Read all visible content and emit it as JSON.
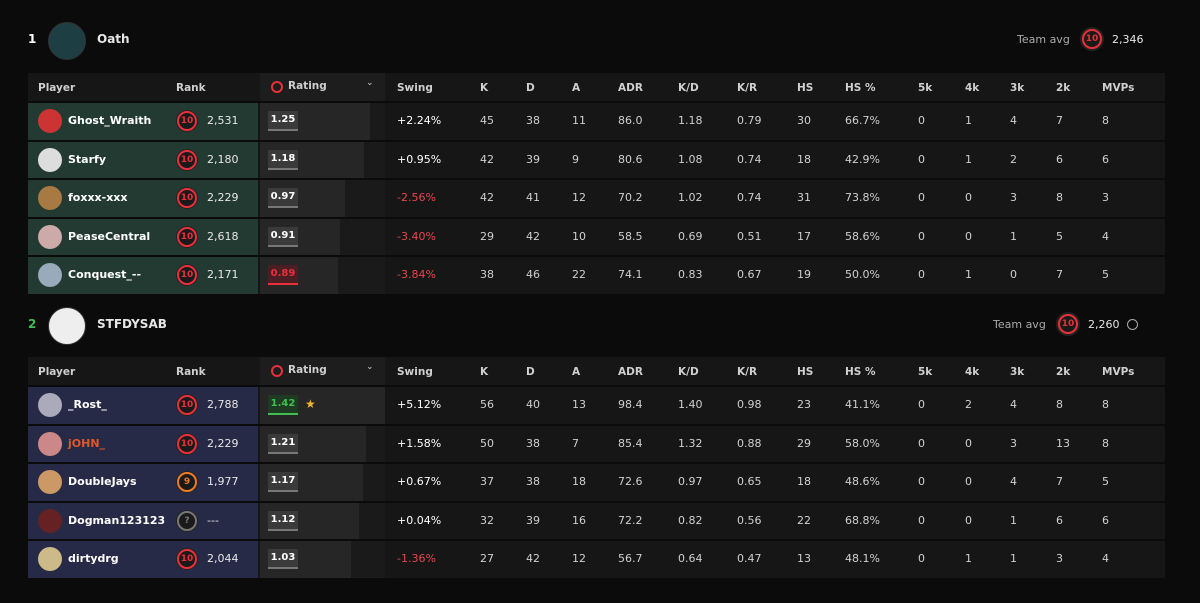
{
  "teams": [
    {
      "place": "1",
      "name": "Oath",
      "avg_label": "Team avg",
      "avg_level": "10",
      "avg_rank": "2,346",
      "place_color": "#ffffff",
      "player_color": "#233a33",
      "info_icon": false,
      "columns": [
        "Player",
        "Rank",
        "Rating",
        "Swing",
        "K",
        "D",
        "A",
        "ADR",
        "K/D",
        "K/R",
        "HS",
        "HS %",
        "5k",
        "4k",
        "3k",
        "2k",
        "MVPs"
      ],
      "rows": [
        {
          "player": "Ghost_Wraith",
          "level": "10",
          "elo": "2,531",
          "rating": "1.25",
          "stats": [
            "+2.24%",
            "45",
            "38",
            "11",
            "86.0",
            "1.18",
            "0.79",
            "30",
            "66.7%",
            "0",
            "1",
            "4",
            "7",
            "8"
          ]
        },
        {
          "player": "Starfy",
          "level": "10",
          "elo": "2,180",
          "rating": "1.18",
          "stats": [
            "+0.95%",
            "42",
            "39",
            "9",
            "80.6",
            "1.08",
            "0.74",
            "18",
            "42.9%",
            "0",
            "1",
            "2",
            "6",
            "6"
          ]
        },
        {
          "player": "foxxx-xxx",
          "level": "10",
          "elo": "2,229",
          "rating": "0.97",
          "stats": [
            "-2.56%",
            "42",
            "41",
            "12",
            "70.2",
            "1.02",
            "0.74",
            "31",
            "73.8%",
            "0",
            "0",
            "3",
            "8",
            "3"
          ]
        },
        {
          "player": "PeaseCentral",
          "level": "10",
          "elo": "2,618",
          "rating": "0.91",
          "stats": [
            "-3.40%",
            "29",
            "42",
            "10",
            "58.5",
            "0.69",
            "0.51",
            "17",
            "58.6%",
            "0",
            "0",
            "1",
            "5",
            "4"
          ]
        },
        {
          "player": "Conquest_--",
          "level": "10",
          "elo": "2,171",
          "rating": "0.89",
          "stats": [
            "-3.84%",
            "38",
            "46",
            "22",
            "74.1",
            "0.83",
            "0.67",
            "19",
            "50.0%",
            "0",
            "1",
            "0",
            "7",
            "5"
          ]
        }
      ]
    },
    {
      "place": "2",
      "name": "STFDYSAB",
      "avg_label": "Team avg",
      "avg_level": "10",
      "avg_rank": "2,260",
      "place_color": "#3fbf4f",
      "player_color": "#262a47",
      "info_icon": true,
      "columns": [
        "Player",
        "Rank",
        "Rating",
        "Swing",
        "K",
        "D",
        "A",
        "ADR",
        "K/D",
        "K/R",
        "HS",
        "HS %",
        "5k",
        "4k",
        "3k",
        "2k",
        "MVPs"
      ],
      "rows": [
        {
          "player": "_Rost_",
          "level": "10",
          "elo": "2,788",
          "rating": "1.42",
          "star": true,
          "stats": [
            "+5.12%",
            "56",
            "40",
            "13",
            "98.4",
            "1.40",
            "0.98",
            "23",
            "41.1%",
            "0",
            "2",
            "4",
            "8",
            "8"
          ]
        },
        {
          "player": "jOHN_",
          "level": "10",
          "elo": "2,229",
          "rating": "1.21",
          "name_color": "#e0582a",
          "stats": [
            "+1.58%",
            "50",
            "38",
            "7",
            "85.4",
            "1.32",
            "0.88",
            "29",
            "58.0%",
            "0",
            "0",
            "3",
            "13",
            "8"
          ]
        },
        {
          "player": "DoubleJays",
          "level": "9",
          "elo": "1,977",
          "rating": "1.17",
          "stats": [
            "+0.67%",
            "37",
            "38",
            "18",
            "72.6",
            "0.97",
            "0.65",
            "18",
            "48.6%",
            "0",
            "0",
            "4",
            "7",
            "5"
          ]
        },
        {
          "player": "Dogman123123",
          "level": "?",
          "elo": "---",
          "rating": "1.12",
          "stats": [
            "+0.04%",
            "32",
            "39",
            "16",
            "72.2",
            "0.82",
            "0.56",
            "22",
            "68.8%",
            "0",
            "0",
            "1",
            "6",
            "6"
          ]
        },
        {
          "player": "dirtydrg",
          "level": "10",
          "elo": "2,044",
          "rating": "1.03",
          "stats": [
            "-1.36%",
            "27",
            "42",
            "12",
            "56.7",
            "0.64",
            "0.47",
            "13",
            "48.1%",
            "0",
            "1",
            "1",
            "3",
            "4"
          ]
        }
      ]
    }
  ]
}
